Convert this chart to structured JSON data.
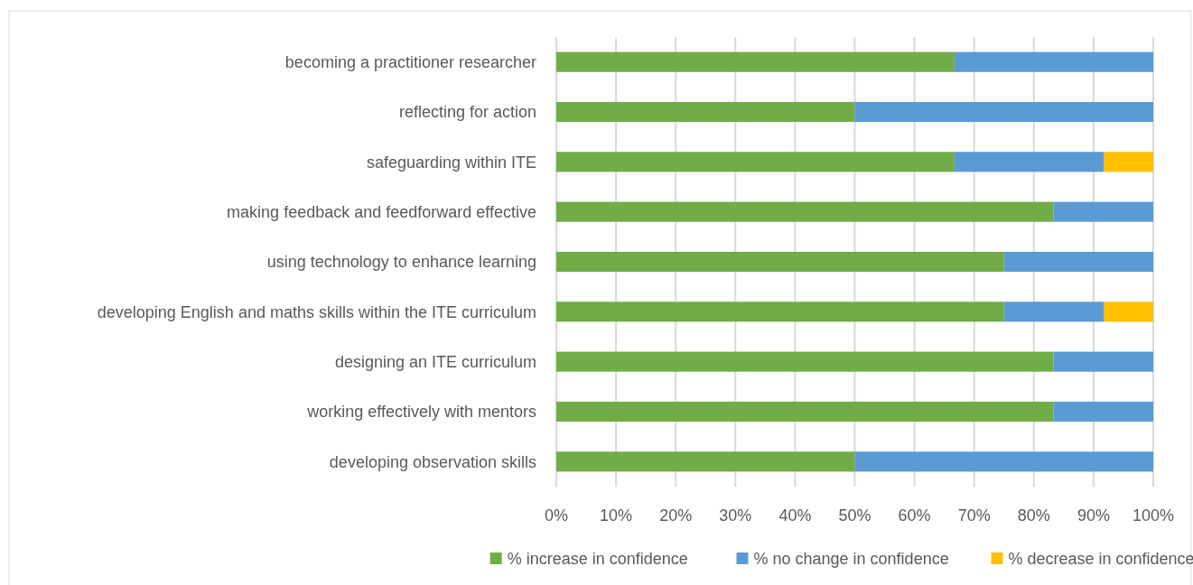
{
  "chart_data": {
    "type": "bar",
    "orientation": "horizontal",
    "stacked": true,
    "categories": [
      "becoming a practitioner researcher",
      "reflecting for action",
      "safeguarding within ITE",
      "making feedback and feedforward effective",
      "using technology to enhance learning",
      "developing English and maths skills within the ITE curriculum",
      "designing an ITE curriculum",
      "working effectively with mentors",
      "developing observation skills"
    ],
    "series": [
      {
        "name": "% increase in confidence",
        "color": "#70ad47",
        "values": [
          66.7,
          50,
          66.7,
          83.3,
          75,
          75,
          83.3,
          83.3,
          50
        ]
      },
      {
        "name": "% no change in confidence",
        "color": "#5b9bd5",
        "values": [
          33.3,
          50,
          25,
          16.7,
          25,
          16.7,
          16.7,
          16.7,
          50
        ]
      },
      {
        "name": "% decrease in confidence",
        "color": "#ffc000",
        "values": [
          null,
          null,
          8.3,
          null,
          null,
          8.3,
          null,
          null,
          null
        ]
      }
    ],
    "xlim": [
      0,
      100
    ],
    "xticks": [
      {
        "value": 0,
        "label": "0%"
      },
      {
        "value": 10,
        "label": "10%"
      },
      {
        "value": 20,
        "label": "20%"
      },
      {
        "value": 30,
        "label": "30%"
      },
      {
        "value": 40,
        "label": "40%"
      },
      {
        "value": 50,
        "label": "50%"
      },
      {
        "value": 60,
        "label": "60%"
      },
      {
        "value": 70,
        "label": "70%"
      },
      {
        "value": 80,
        "label": "80%"
      },
      {
        "value": 90,
        "label": "90%"
      },
      {
        "value": 100,
        "label": "100%"
      }
    ],
    "grid": "x",
    "legend": "bottom"
  }
}
